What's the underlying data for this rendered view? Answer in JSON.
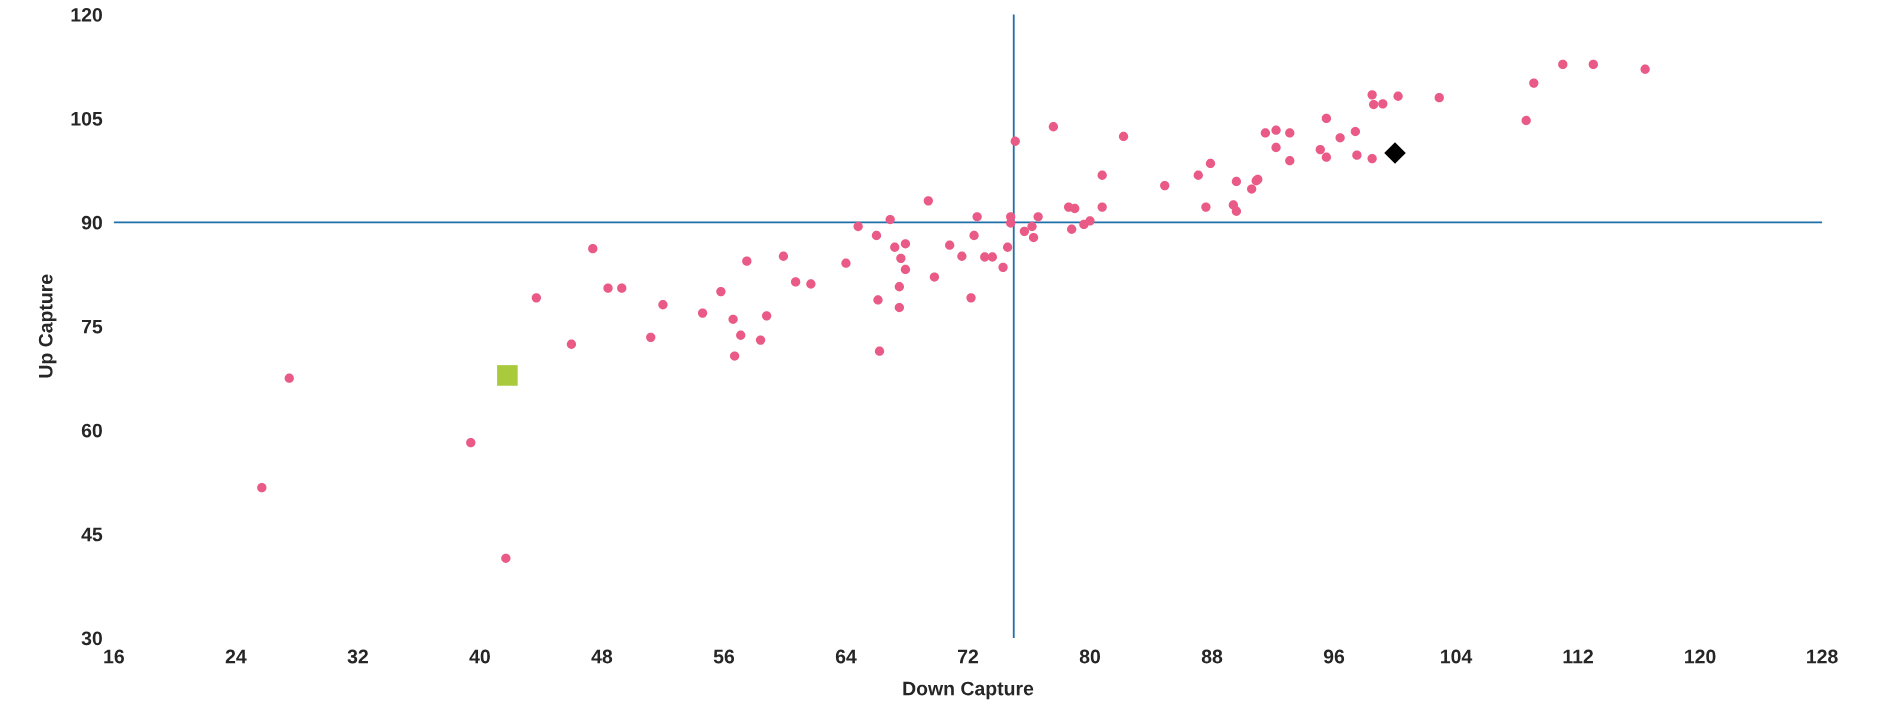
{
  "chart_data": {
    "type": "scatter",
    "xlabel": "Down Capture",
    "ylabel": "Up Capture",
    "xlim": [
      16,
      128
    ],
    "ylim": [
      30,
      120
    ],
    "xticks": [
      16,
      24,
      32,
      40,
      48,
      56,
      64,
      72,
      80,
      88,
      96,
      104,
      112,
      120,
      128
    ],
    "yticks": [
      30,
      45,
      60,
      75,
      90,
      105,
      120
    ],
    "grid": false,
    "legend": false,
    "ref_lines": [
      {
        "axis": "x",
        "value": 75,
        "color": "#1f6fa8"
      },
      {
        "axis": "y",
        "value": 90,
        "color": "#1f6fa8"
      }
    ],
    "series": [
      {
        "color": "#ea5a87",
        "marker": "circle",
        "x": [
          25.7,
          27.5,
          39.4,
          41.7,
          43.7,
          46.0,
          47.4,
          48.4,
          49.3,
          51.2,
          52.0,
          54.6,
          55.8,
          56.6,
          57.1,
          56.7,
          57.5,
          58.4,
          58.8,
          59.9,
          60.7,
          61.7,
          64.0,
          64.8,
          66.0,
          66.1,
          66.2,
          66.9,
          67.2,
          67.5,
          67.5,
          67.6,
          67.9,
          67.9,
          69.4,
          69.8,
          70.8,
          71.6,
          72.2,
          72.4,
          72.6,
          73.1,
          73.6,
          74.3,
          74.6,
          74.8,
          74.8,
          75.1,
          75.7,
          76.2,
          76.3,
          76.6,
          77.6,
          78.6,
          78.8,
          79.0,
          79.6,
          80.0,
          80.8,
          80.8,
          82.2,
          84.9,
          87.1,
          87.6,
          87.9,
          89.4,
          89.6,
          89.6,
          90.6,
          90.9,
          91.0,
          91.5,
          92.2,
          92.2,
          93.1,
          93.1,
          95.1,
          95.5,
          95.5,
          96.4,
          97.4,
          97.5,
          98.5,
          98.5,
          98.6,
          99.2,
          100.2,
          102.9,
          108.6,
          109.1,
          111.0,
          113.0,
          116.4
        ],
        "values": [
          51.7,
          67.5,
          58.2,
          41.5,
          79.1,
          72.4,
          86.2,
          80.5,
          80.5,
          73.4,
          78.1,
          76.9,
          80.0,
          76.0,
          73.7,
          70.7,
          84.4,
          73.0,
          76.5,
          85.1,
          81.4,
          81.1,
          84.1,
          89.4,
          88.1,
          78.8,
          71.4,
          90.4,
          86.4,
          80.7,
          77.7,
          84.8,
          86.9,
          83.2,
          93.1,
          82.1,
          86.7,
          85.1,
          79.1,
          88.1,
          90.8,
          85.0,
          85.0,
          83.5,
          86.4,
          90.8,
          89.9,
          101.7,
          88.7,
          89.4,
          87.8,
          90.8,
          103.8,
          92.2,
          89.0,
          92.0,
          89.7,
          90.2,
          96.8,
          92.2,
          102.4,
          95.3,
          96.8,
          92.2,
          98.5,
          92.5,
          95.9,
          91.6,
          94.8,
          96.0,
          96.2,
          102.9,
          103.3,
          100.8,
          102.9,
          98.9,
          100.5,
          105.0,
          99.4,
          102.2,
          103.1,
          99.7,
          99.2,
          108.4,
          107.0,
          107.1,
          108.2,
          108.0,
          104.7,
          110.1,
          112.8,
          112.8,
          112.1
        ]
      },
      {
        "color": "#a9cb3b",
        "marker": "square",
        "x": [
          41.8
        ],
        "values": [
          67.9
        ]
      },
      {
        "color": "#000000",
        "marker": "diamond",
        "x": [
          100.0
        ],
        "values": [
          100.0
        ]
      }
    ]
  }
}
